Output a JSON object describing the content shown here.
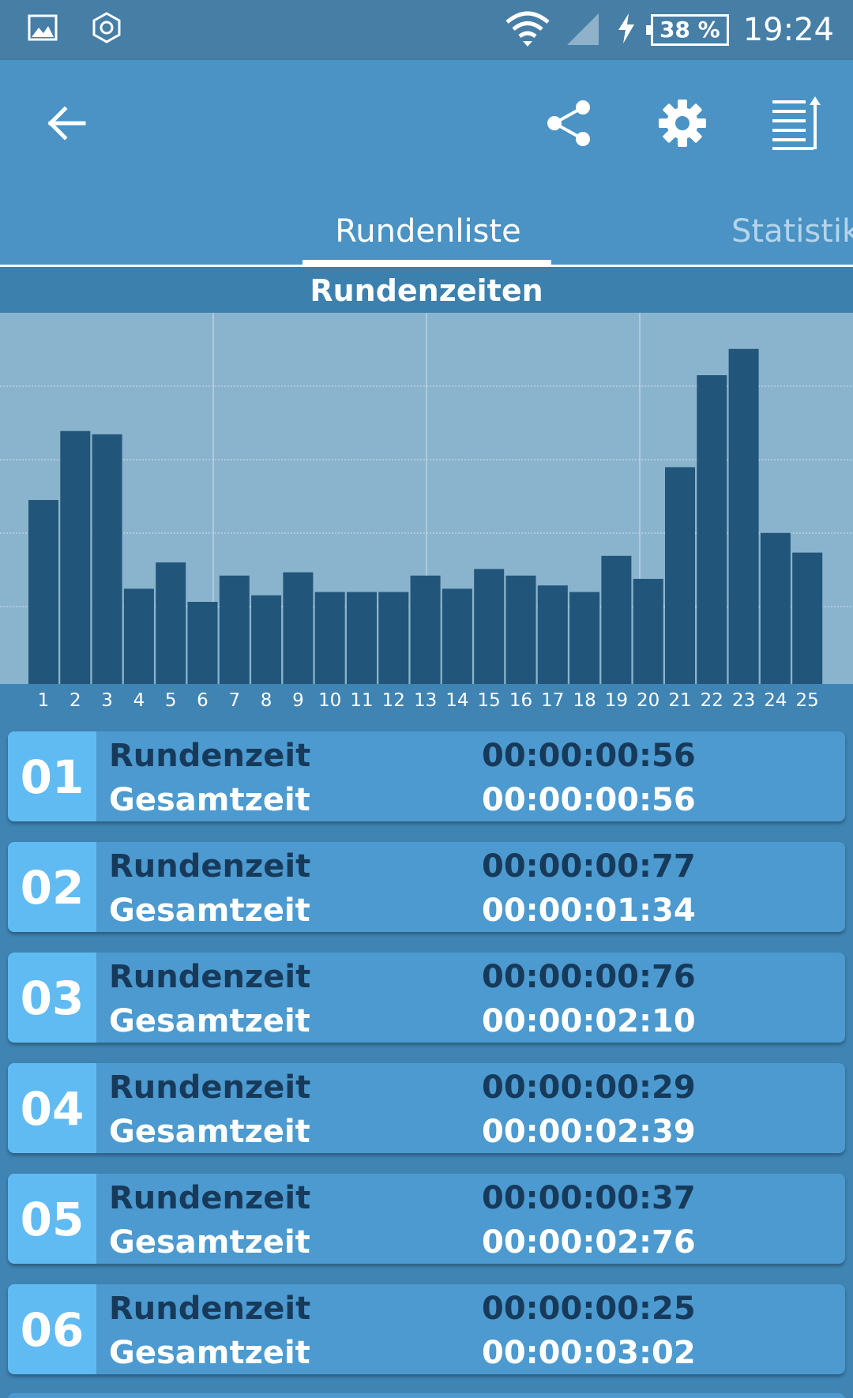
{
  "status_bar": {
    "time": "19:24",
    "battery": "38 %",
    "icons": [
      "image-icon",
      "hexagon-icon",
      "wifi-icon",
      "signal-icon",
      "charging-icon"
    ]
  },
  "app_bar": {
    "icons": [
      "back-arrow-icon",
      "share-icon",
      "gear-icon",
      "sort-list-icon"
    ]
  },
  "tabs": [
    {
      "label": "Rundenliste",
      "active": true
    },
    {
      "label": "Statistik",
      "active": false
    }
  ],
  "colors": {
    "bar": "#22557a",
    "chart_bg": "#8ab4ce",
    "accent": "#61bbf3"
  },
  "chart_data": {
    "type": "bar",
    "title": "Rundenzeiten",
    "categories": [
      "1",
      "2",
      "3",
      "4",
      "5",
      "6",
      "7",
      "8",
      "9",
      "10",
      "11",
      "12",
      "13",
      "14",
      "15",
      "16",
      "17",
      "18",
      "19",
      "20",
      "21",
      "22",
      "23",
      "24",
      "25"
    ],
    "values": [
      0.56,
      0.77,
      0.76,
      0.29,
      0.37,
      0.25,
      0.33,
      0.27,
      0.34,
      0.28,
      0.28,
      0.28,
      0.33,
      0.29,
      0.35,
      0.33,
      0.3,
      0.28,
      0.39,
      0.32,
      0.66,
      0.94,
      1.02,
      0.46,
      0.4
    ],
    "ylim": [
      0,
      1.13
    ],
    "grid": true
  },
  "laps": [
    {
      "num": "01",
      "lap_label": "Rundenzeit",
      "lap_time": "00:00:00:56",
      "total_label": "Gesamtzeit",
      "total_time": "00:00:00:56"
    },
    {
      "num": "02",
      "lap_label": "Rundenzeit",
      "lap_time": "00:00:00:77",
      "total_label": "Gesamtzeit",
      "total_time": "00:00:01:34"
    },
    {
      "num": "03",
      "lap_label": "Rundenzeit",
      "lap_time": "00:00:00:76",
      "total_label": "Gesamtzeit",
      "total_time": "00:00:02:10"
    },
    {
      "num": "04",
      "lap_label": "Rundenzeit",
      "lap_time": "00:00:00:29",
      "total_label": "Gesamtzeit",
      "total_time": "00:00:02:39"
    },
    {
      "num": "05",
      "lap_label": "Rundenzeit",
      "lap_time": "00:00:00:37",
      "total_label": "Gesamtzeit",
      "total_time": "00:00:02:76"
    },
    {
      "num": "06",
      "lap_label": "Rundenzeit",
      "lap_time": "00:00:00:25",
      "total_label": "Gesamtzeit",
      "total_time": "00:00:03:02"
    }
  ]
}
